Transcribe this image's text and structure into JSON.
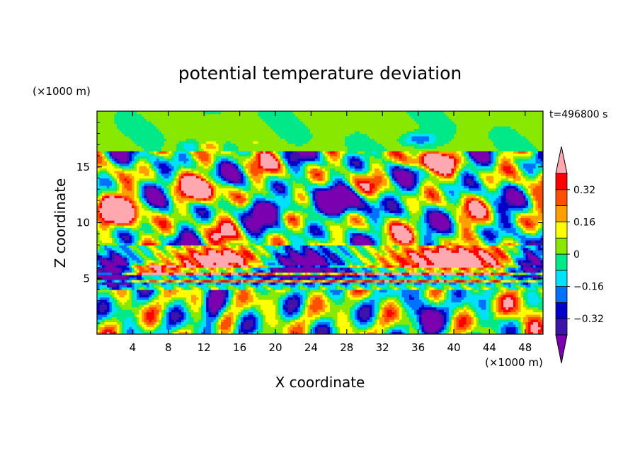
{
  "chart_data": {
    "type": "heatmap",
    "title": "potential temperature deviation",
    "xlabel": "X coordinate",
    "ylabel": "Z coordinate",
    "x_unit": "(×1000 m)",
    "y_unit": "(×1000 m)",
    "time_label": "t=496800 s",
    "xlim": [
      0,
      50
    ],
    "ylim": [
      0,
      20
    ],
    "x_ticks": [
      4,
      8,
      12,
      16,
      20,
      24,
      28,
      32,
      36,
      40,
      44,
      48
    ],
    "y_ticks": [
      5,
      10,
      15
    ],
    "colorbar": {
      "labels": [
        "0.32",
        "0.16",
        "0",
        "−0.16",
        "−0.32"
      ],
      "label_values": [
        0.32,
        0.16,
        0,
        -0.16,
        -0.32
      ],
      "levels": [
        -0.4,
        -0.32,
        -0.24,
        -0.16,
        -0.08,
        0,
        0.08,
        0.16,
        0.24,
        0.32,
        0.4
      ],
      "colors": [
        "#7a00b0",
        "#3c14a8",
        "#0000c8",
        "#0070ff",
        "#00e0ff",
        "#00e888",
        "#88e800",
        "#ffff00",
        "#ffa000",
        "#ff5000",
        "#ff0000",
        "#ffa8b0"
      ]
    }
  }
}
